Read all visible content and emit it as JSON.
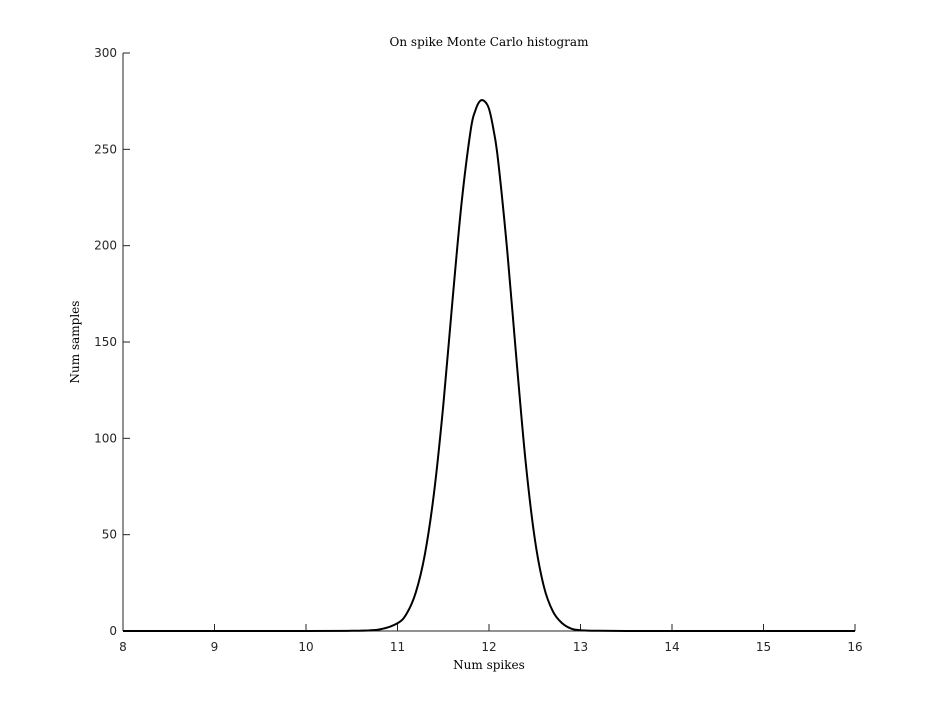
{
  "chart_data": {
    "type": "line",
    "title": "On spike Monte Carlo histogram",
    "xlabel": "Num spikes",
    "ylabel": "Num samples",
    "xlim": [
      8,
      16
    ],
    "ylim": [
      0,
      300
    ],
    "xticks": [
      8,
      9,
      10,
      11,
      12,
      13,
      14,
      15,
      16
    ],
    "yticks": [
      0,
      50,
      100,
      150,
      200,
      250,
      300
    ],
    "grid": false,
    "legend": "none",
    "line_color": "#000000",
    "series": [
      {
        "x": [
          8,
          9,
          10,
          10.5,
          10.8,
          11,
          11.1,
          11.2,
          11.3,
          11.4,
          11.5,
          11.6,
          11.7,
          11.8,
          11.85,
          11.9,
          11.95,
          12,
          12.05,
          12.1,
          12.2,
          12.3,
          12.4,
          12.5,
          12.6,
          12.7,
          12.8,
          12.9,
          13,
          13.2,
          13.5,
          14,
          15,
          16
        ],
        "y": [
          0,
          0,
          0,
          0.1,
          0.8,
          4,
          9,
          20,
          40,
          72,
          117,
          171,
          222,
          260,
          270,
          275,
          275,
          271,
          260,
          244,
          197,
          141,
          88,
          48,
          23,
          10,
          4,
          1.2,
          0.4,
          0.1,
          0,
          0,
          0,
          0
        ]
      }
    ]
  }
}
